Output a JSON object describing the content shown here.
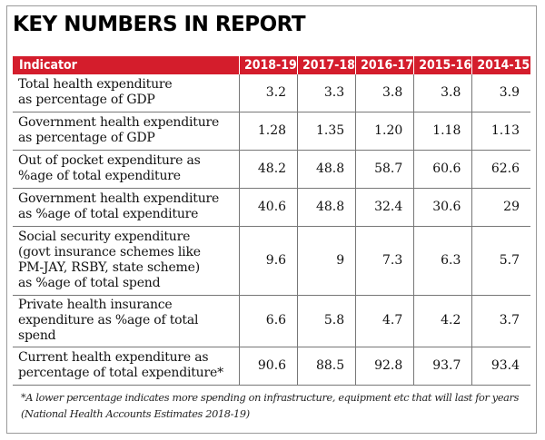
{
  "title": "KEY NUMBERS IN REPORT",
  "table": {
    "header": [
      "Indicator",
      "2018-19",
      "2017-18",
      "2016-17",
      "2015-16",
      "2014-15"
    ],
    "rows": [
      {
        "label_lines": [
          "Total health expenditure",
          "as percentage of GDP"
        ],
        "values": [
          "3.2",
          "3.3",
          "3.8",
          "3.8",
          "3.9"
        ]
      },
      {
        "label_lines": [
          "Government health expenditure",
          "as percentage of GDP"
        ],
        "values": [
          "1.28",
          "1.35",
          "1.20",
          "1.18",
          "1.13"
        ]
      },
      {
        "label_lines": [
          "Out of pocket expenditure as",
          "%age of total expenditure"
        ],
        "values": [
          "48.2",
          "48.8",
          "58.7",
          "60.6",
          "62.6"
        ]
      },
      {
        "label_lines": [
          "Government health expenditure",
          "as %age of total expenditure"
        ],
        "values": [
          "40.6",
          "48.8",
          "32.4",
          "30.6",
          "29"
        ]
      },
      {
        "label_lines": [
          "Social security expenditure",
          "(govt insurance schemes like",
          "PM-JAY, RSBY, state scheme)",
          "as %age of total spend"
        ],
        "values": [
          "9.6",
          "9",
          "7.3",
          "6.3",
          "5.7"
        ]
      },
      {
        "label_lines": [
          "Private health insurance",
          "expenditure as %age of total spend"
        ],
        "values": [
          "6.6",
          "5.8",
          "4.7",
          "4.2",
          "3.7"
        ]
      },
      {
        "label_lines": [
          "Current health expenditure as",
          "percentage of total expenditure*"
        ],
        "values": [
          "90.6",
          "88.5",
          "92.8",
          "93.7",
          "93.4"
        ]
      }
    ]
  },
  "footnote": {
    "line1": "*A lower percentage indicates more spending on infrastructure, equipment etc that will last for years",
    "line2": "(National Health Accounts Estimates 2018-19)"
  },
  "colors": {
    "header_bg": "#d41d2c",
    "header_text": "#ffffff",
    "rule": "#777777"
  }
}
